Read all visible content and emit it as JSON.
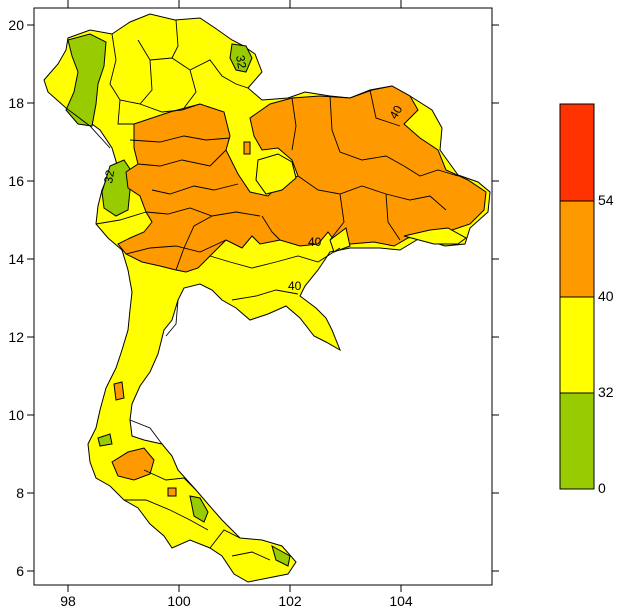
{
  "map": {
    "x_ticks": [
      "98",
      "100",
      "102",
      "104"
    ],
    "y_ticks": [
      "20",
      "18",
      "16",
      "14",
      "12",
      "10",
      "8",
      "6"
    ],
    "contour_labels": [
      "32",
      "32",
      "40",
      "40",
      "40"
    ]
  },
  "legend": {
    "levels": [
      {
        "label": "0",
        "color": "#99cc00"
      },
      {
        "label": "32",
        "color": "#ffff00"
      },
      {
        "label": "40",
        "color": "#ff9900"
      },
      {
        "label": "54",
        "color": "#ff3300"
      }
    ],
    "top_color": "#ff3300"
  },
  "colors": {
    "green": "#99cc00",
    "yellow": "#ffff00",
    "orange": "#ff9900",
    "red": "#ff3300"
  }
}
